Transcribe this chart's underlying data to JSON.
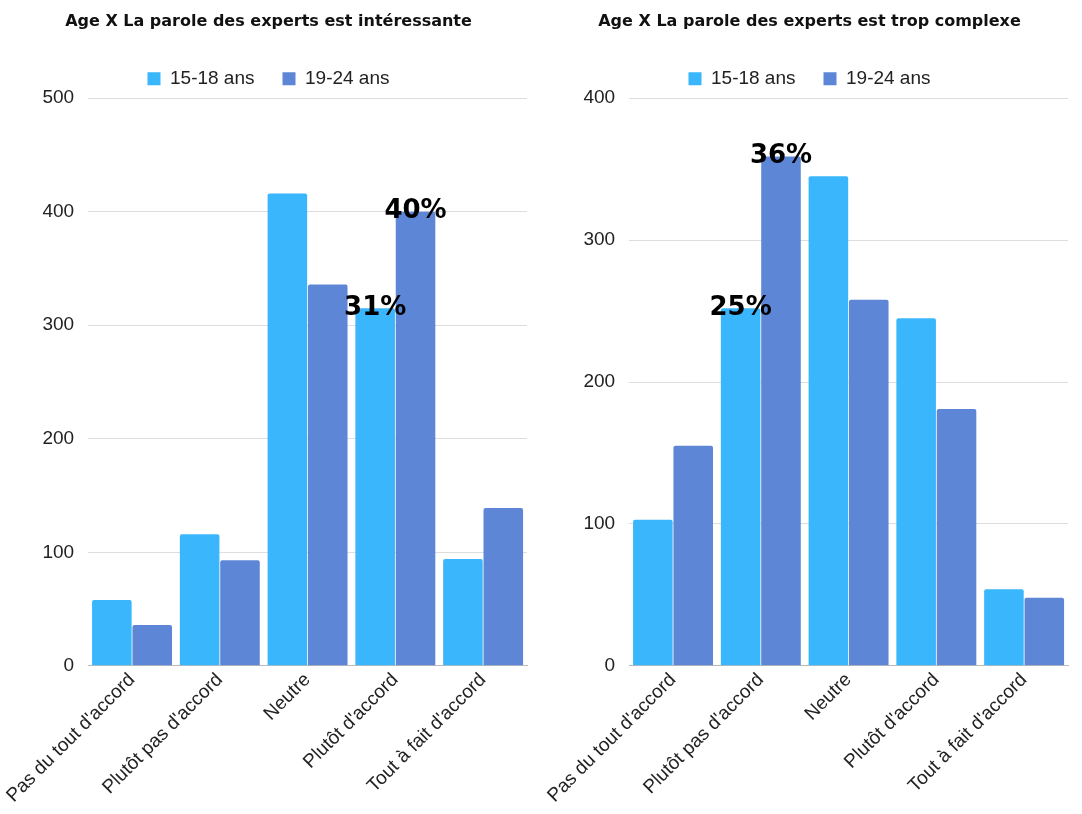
{
  "chart_data": [
    {
      "type": "bar",
      "title": "Age X La parole des experts est intéressante",
      "categories": [
        "Pas du tout d'accord",
        "Plutôt pas d'accord",
        "Neutre",
        "Plutôt d'accord",
        "Tout à fait d'accord"
      ],
      "series": [
        {
          "name": "15-18 ans",
          "color": "#3ab6fc",
          "values": [
            58,
            116,
            416,
            315,
            94
          ]
        },
        {
          "name": "19-24 ans",
          "color": "#5e86d6",
          "values": [
            36,
            93,
            336,
            400,
            139
          ]
        }
      ],
      "ylim": [
        0,
        500
      ],
      "yticks": [
        0,
        100,
        200,
        300,
        400,
        500
      ],
      "grid": "y",
      "legend": "top",
      "annotations": [
        {
          "text": "31%",
          "x": "Plutôt d'accord",
          "y": 315
        },
        {
          "text": "40%",
          "x": "Plutôt d'accord",
          "y": 400
        }
      ]
    },
    {
      "type": "bar",
      "title": "Age X La parole des experts est trop complexe",
      "categories": [
        "Pas du tout d'accord",
        "Plutôt pas d'accord",
        "Neutre",
        "Plutôt d'accord",
        "Tout à fait d'accord"
      ],
      "series": [
        {
          "name": "15-18 ans",
          "color": "#3ab6fc",
          "values": [
            103,
            252,
            345,
            245,
            54
          ]
        },
        {
          "name": "19-24 ans",
          "color": "#5e86d6",
          "values": [
            155,
            359,
            258,
            181,
            48
          ]
        }
      ],
      "ylim": [
        0,
        400
      ],
      "yticks": [
        0,
        100,
        200,
        300,
        400
      ],
      "grid": "y",
      "legend": "top",
      "annotations": [
        {
          "text": "25%",
          "x": "Plutôt pas d'accord",
          "y": 252
        },
        {
          "text": "36%",
          "x": "Plutôt pas d'accord",
          "y": 359
        }
      ]
    }
  ]
}
